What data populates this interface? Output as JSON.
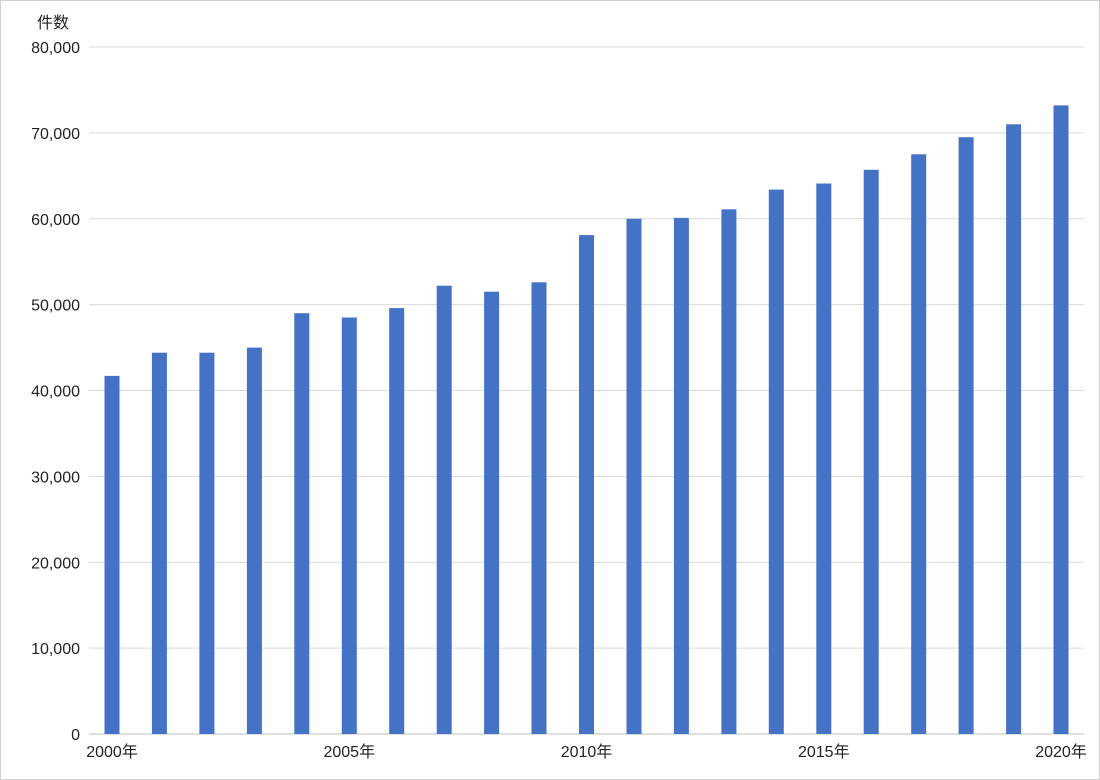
{
  "chart_data": {
    "type": "bar",
    "ylabel": "件数",
    "ylim": [
      0,
      80000
    ],
    "yticks": [
      0,
      10000,
      20000,
      30000,
      40000,
      50000,
      60000,
      70000,
      80000
    ],
    "ytick_labels": [
      "0",
      "10,000",
      "20,000",
      "30,000",
      "40,000",
      "50,000",
      "60,000",
      "70,000",
      "80,000"
    ],
    "categories": [
      "2000年",
      "2001年",
      "2002年",
      "2003年",
      "2004年",
      "2005年",
      "2006年",
      "2007年",
      "2008年",
      "2009年",
      "2010年",
      "2011年",
      "2012年",
      "2013年",
      "2014年",
      "2015年",
      "2016年",
      "2017年",
      "2018年",
      "2019年",
      "2020年"
    ],
    "visible_xtick_labels": [
      "2000年",
      "2005年",
      "2010年",
      "2015年",
      "2020年"
    ],
    "values": [
      41700,
      44400,
      44400,
      45000,
      49000,
      48500,
      49600,
      52200,
      51500,
      52600,
      58100,
      60000,
      60100,
      61100,
      63400,
      64100,
      65700,
      67500,
      69500,
      71000,
      73200
    ],
    "bar_color": "#4472c4",
    "grid": true,
    "legend": "none"
  }
}
